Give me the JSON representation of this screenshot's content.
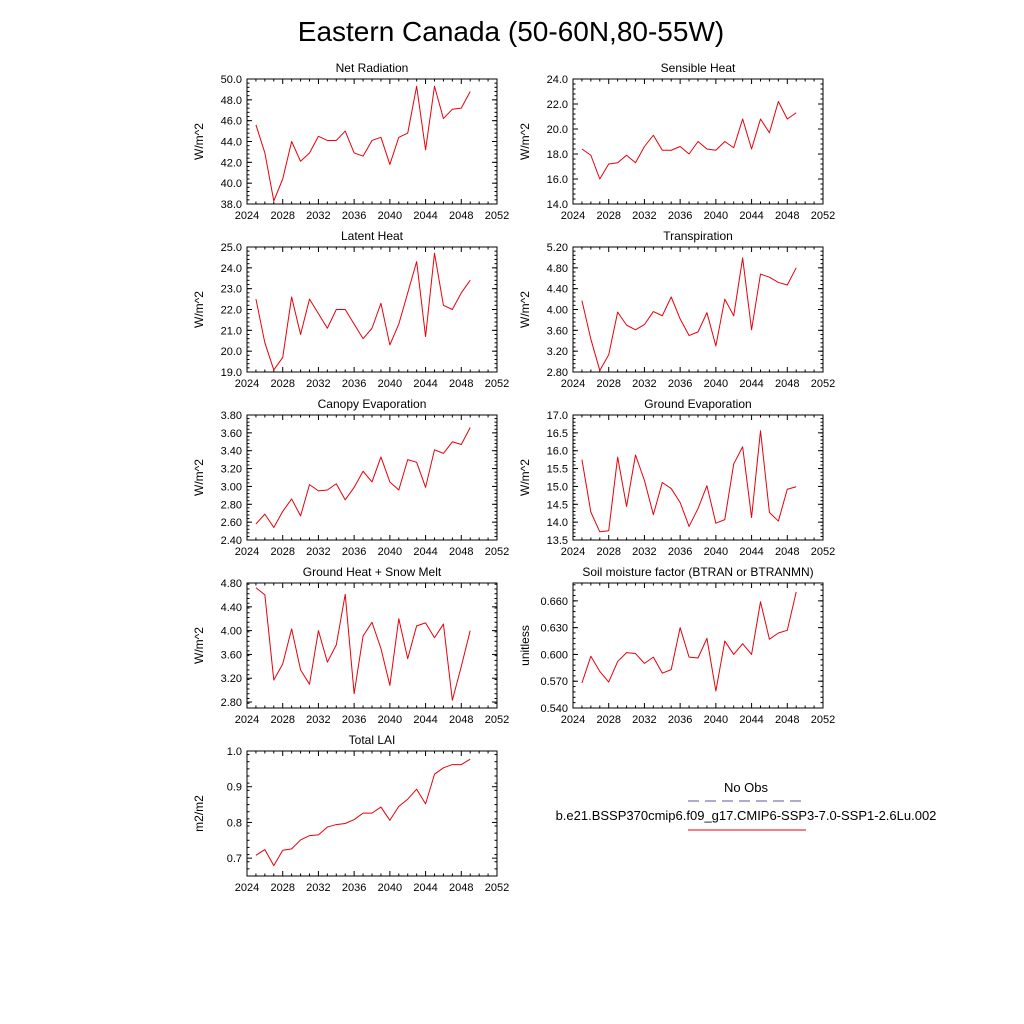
{
  "figure": {
    "title": "Eastern Canada (50-60N,80-55W)",
    "legend": {
      "entries": [
        {
          "label": "No Obs",
          "style": "dashed",
          "color": "#5a5a9a"
        },
        {
          "label": "b.e21.BSSP370cmip6.f09_g17.CMIP6-SSP3-7.0-SSP1-2.6Lu.002",
          "style": "solid",
          "color": "#e8000b"
        }
      ],
      "placement": "bottom-right"
    }
  },
  "chart_data": [
    {
      "type": "line",
      "title": "Net Radiation",
      "ylabel": "W/m^2",
      "xlim": [
        2024,
        2052
      ],
      "ylim": [
        38.0,
        50.0
      ],
      "xticks": [
        2024,
        2028,
        2032,
        2036,
        2040,
        2044,
        2048,
        2052
      ],
      "yticks": [
        38.0,
        40.0,
        42.0,
        44.0,
        46.0,
        48.0,
        50.0
      ],
      "ydecimals": 1,
      "x": [
        2025,
        2026,
        2027,
        2028,
        2029,
        2030,
        2031,
        2032,
        2033,
        2034,
        2035,
        2036,
        2037,
        2038,
        2039,
        2040,
        2041,
        2042,
        2043,
        2044,
        2045,
        2046,
        2047,
        2048,
        2049
      ],
      "series": [
        {
          "color": "#e8000b",
          "values": [
            45.6,
            42.9,
            38.3,
            40.4,
            44.0,
            42.1,
            42.9,
            44.5,
            44.1,
            44.1,
            45.0,
            42.9,
            42.6,
            44.1,
            44.4,
            41.8,
            44.4,
            44.8,
            49.3,
            43.2,
            49.3,
            46.2,
            47.1,
            47.2,
            48.8
          ]
        }
      ]
    },
    {
      "type": "line",
      "title": "Sensible Heat",
      "ylabel": "W/m^2",
      "xlim": [
        2024,
        2052
      ],
      "ylim": [
        14.0,
        24.0
      ],
      "xticks": [
        2024,
        2028,
        2032,
        2036,
        2040,
        2044,
        2048,
        2052
      ],
      "yticks": [
        14.0,
        16.0,
        18.0,
        20.0,
        22.0,
        24.0
      ],
      "ydecimals": 1,
      "x": [
        2025,
        2026,
        2027,
        2028,
        2029,
        2030,
        2031,
        2032,
        2033,
        2034,
        2035,
        2036,
        2037,
        2038,
        2039,
        2040,
        2041,
        2042,
        2043,
        2044,
        2045,
        2046,
        2047,
        2048,
        2049
      ],
      "series": [
        {
          "color": "#e8000b",
          "values": [
            18.4,
            17.9,
            16.0,
            17.2,
            17.3,
            17.9,
            17.3,
            18.6,
            19.5,
            18.3,
            18.3,
            18.6,
            18.0,
            19.0,
            18.4,
            18.3,
            19.0,
            18.5,
            20.8,
            18.4,
            20.8,
            19.7,
            22.2,
            20.8,
            21.3
          ]
        }
      ]
    },
    {
      "type": "line",
      "title": "Latent Heat",
      "ylabel": "W/m^2",
      "xlim": [
        2024,
        2052
      ],
      "ylim": [
        19.0,
        25.0
      ],
      "xticks": [
        2024,
        2028,
        2032,
        2036,
        2040,
        2044,
        2048,
        2052
      ],
      "yticks": [
        19.0,
        20.0,
        21.0,
        22.0,
        23.0,
        24.0,
        25.0
      ],
      "ydecimals": 1,
      "x": [
        2025,
        2026,
        2027,
        2028,
        2029,
        2030,
        2031,
        2032,
        2033,
        2034,
        2035,
        2036,
        2037,
        2038,
        2039,
        2040,
        2041,
        2042,
        2043,
        2044,
        2045,
        2046,
        2047,
        2048,
        2049
      ],
      "series": [
        {
          "color": "#e8000b",
          "values": [
            22.5,
            20.4,
            19.1,
            19.7,
            22.6,
            20.8,
            22.5,
            21.8,
            21.1,
            22.0,
            22.0,
            21.3,
            20.6,
            21.1,
            22.3,
            20.3,
            21.3,
            22.8,
            24.3,
            20.7,
            24.7,
            22.2,
            22.0,
            22.8,
            23.4
          ]
        }
      ]
    },
    {
      "type": "line",
      "title": "Transpiration",
      "ylabel": "W/m^2",
      "xlim": [
        2024,
        2052
      ],
      "ylim": [
        2.8,
        5.2
      ],
      "xticks": [
        2024,
        2028,
        2032,
        2036,
        2040,
        2044,
        2048,
        2052
      ],
      "yticks": [
        2.8,
        3.2,
        3.6,
        4.0,
        4.4,
        4.8,
        5.2
      ],
      "ydecimals": 2,
      "x": [
        2025,
        2026,
        2027,
        2028,
        2029,
        2030,
        2031,
        2032,
        2033,
        2034,
        2035,
        2036,
        2037,
        2038,
        2039,
        2040,
        2041,
        2042,
        2043,
        2044,
        2045,
        2046,
        2047,
        2048,
        2049
      ],
      "series": [
        {
          "color": "#e8000b",
          "values": [
            4.17,
            3.43,
            2.83,
            3.13,
            3.95,
            3.7,
            3.61,
            3.71,
            3.96,
            3.88,
            4.24,
            3.82,
            3.5,
            3.57,
            3.94,
            3.3,
            4.2,
            3.88,
            4.99,
            3.61,
            4.68,
            4.62,
            4.52,
            4.47,
            4.8
          ]
        }
      ]
    },
    {
      "type": "line",
      "title": "Canopy Evaporation",
      "ylabel": "W/m^2",
      "xlim": [
        2024,
        2052
      ],
      "ylim": [
        2.4,
        3.8
      ],
      "xticks": [
        2024,
        2028,
        2032,
        2036,
        2040,
        2044,
        2048,
        2052
      ],
      "yticks": [
        2.4,
        2.6,
        2.8,
        3.0,
        3.2,
        3.4,
        3.6,
        3.8
      ],
      "ydecimals": 2,
      "x": [
        2025,
        2026,
        2027,
        2028,
        2029,
        2030,
        2031,
        2032,
        2033,
        2034,
        2035,
        2036,
        2037,
        2038,
        2039,
        2040,
        2041,
        2042,
        2043,
        2044,
        2045,
        2046,
        2047,
        2048,
        2049
      ],
      "series": [
        {
          "color": "#e8000b",
          "values": [
            2.58,
            2.69,
            2.54,
            2.72,
            2.86,
            2.67,
            3.02,
            2.95,
            2.96,
            3.03,
            2.85,
            2.99,
            3.17,
            3.05,
            3.33,
            3.05,
            2.96,
            3.3,
            3.27,
            2.99,
            3.41,
            3.37,
            3.5,
            3.47,
            3.66
          ]
        }
      ]
    },
    {
      "type": "line",
      "title": "Ground Evaporation",
      "ylabel": "W/m^2",
      "xlim": [
        2024,
        2052
      ],
      "ylim": [
        13.5,
        17.0
      ],
      "xticks": [
        2024,
        2028,
        2032,
        2036,
        2040,
        2044,
        2048,
        2052
      ],
      "yticks": [
        13.5,
        14.0,
        14.5,
        15.0,
        15.5,
        16.0,
        16.5,
        17.0
      ],
      "ydecimals": 1,
      "x": [
        2025,
        2026,
        2027,
        2028,
        2029,
        2030,
        2031,
        2032,
        2033,
        2034,
        2035,
        2036,
        2037,
        2038,
        2039,
        2040,
        2041,
        2042,
        2043,
        2044,
        2045,
        2046,
        2047,
        2048,
        2049
      ],
      "series": [
        {
          "color": "#e8000b",
          "values": [
            15.75,
            14.28,
            13.73,
            13.76,
            15.82,
            14.44,
            15.88,
            15.17,
            14.21,
            15.11,
            14.94,
            14.55,
            13.88,
            14.38,
            15.02,
            13.97,
            14.07,
            15.63,
            16.11,
            14.13,
            16.56,
            14.27,
            14.03,
            14.92,
            14.99
          ]
        }
      ]
    },
    {
      "type": "line",
      "title": "Ground Heat + Snow Melt",
      "ylabel": "W/m^2",
      "xlim": [
        2024,
        2052
      ],
      "ylim": [
        2.7,
        4.8
      ],
      "xticks": [
        2024,
        2028,
        2032,
        2036,
        2040,
        2044,
        2048,
        2052
      ],
      "yticks": [
        2.8,
        3.2,
        3.6,
        4.0,
        4.4,
        4.8
      ],
      "ydecimals": 2,
      "x": [
        2025,
        2026,
        2027,
        2028,
        2029,
        2030,
        2031,
        2032,
        2033,
        2034,
        2035,
        2036,
        2037,
        2038,
        2039,
        2040,
        2041,
        2042,
        2043,
        2044,
        2045,
        2046,
        2047,
        2048,
        2049
      ],
      "series": [
        {
          "color": "#e8000b",
          "values": [
            4.72,
            4.6,
            3.17,
            3.44,
            4.03,
            3.34,
            3.1,
            4.0,
            3.47,
            3.76,
            4.61,
            2.94,
            3.91,
            4.14,
            3.7,
            3.08,
            4.2,
            3.53,
            4.08,
            4.13,
            3.88,
            4.11,
            2.83,
            3.4,
            4.0
          ]
        }
      ]
    },
    {
      "type": "line",
      "title": "Soil moisture factor (BTRAN or BTRANMN)",
      "ylabel": "unitless",
      "xlim": [
        2024,
        2052
      ],
      "ylim": [
        0.54,
        0.68
      ],
      "xticks": [
        2024,
        2028,
        2032,
        2036,
        2040,
        2044,
        2048,
        2052
      ],
      "yticks": [
        0.54,
        0.57,
        0.6,
        0.63,
        0.66
      ],
      "ydecimals": 3,
      "x": [
        2025,
        2026,
        2027,
        2028,
        2029,
        2030,
        2031,
        2032,
        2033,
        2034,
        2035,
        2036,
        2037,
        2038,
        2039,
        2040,
        2041,
        2042,
        2043,
        2044,
        2045,
        2046,
        2047,
        2048,
        2049
      ],
      "series": [
        {
          "color": "#e8000b",
          "values": [
            0.568,
            0.598,
            0.581,
            0.569,
            0.592,
            0.602,
            0.601,
            0.59,
            0.597,
            0.579,
            0.583,
            0.63,
            0.597,
            0.596,
            0.618,
            0.559,
            0.615,
            0.6,
            0.612,
            0.6,
            0.659,
            0.617,
            0.624,
            0.627,
            0.67
          ]
        }
      ]
    },
    {
      "type": "line",
      "title": "Total LAI",
      "ylabel": "m2/m2",
      "xlim": [
        2024,
        2052
      ],
      "ylim": [
        0.65,
        1.0
      ],
      "xticks": [
        2024,
        2028,
        2032,
        2036,
        2040,
        2044,
        2048,
        2052
      ],
      "yticks": [
        0.7,
        0.8,
        0.9,
        1.0
      ],
      "ydecimals": 1,
      "x": [
        2025,
        2026,
        2027,
        2028,
        2029,
        2030,
        2031,
        2032,
        2033,
        2034,
        2035,
        2036,
        2037,
        2038,
        2039,
        2040,
        2041,
        2042,
        2043,
        2044,
        2045,
        2046,
        2047,
        2048,
        2049
      ],
      "series": [
        {
          "color": "#e8000b",
          "values": [
            0.708,
            0.724,
            0.679,
            0.722,
            0.726,
            0.751,
            0.763,
            0.765,
            0.787,
            0.794,
            0.797,
            0.808,
            0.826,
            0.826,
            0.843,
            0.806,
            0.845,
            0.865,
            0.893,
            0.852,
            0.935,
            0.953,
            0.962,
            0.962,
            0.977
          ]
        }
      ]
    }
  ]
}
